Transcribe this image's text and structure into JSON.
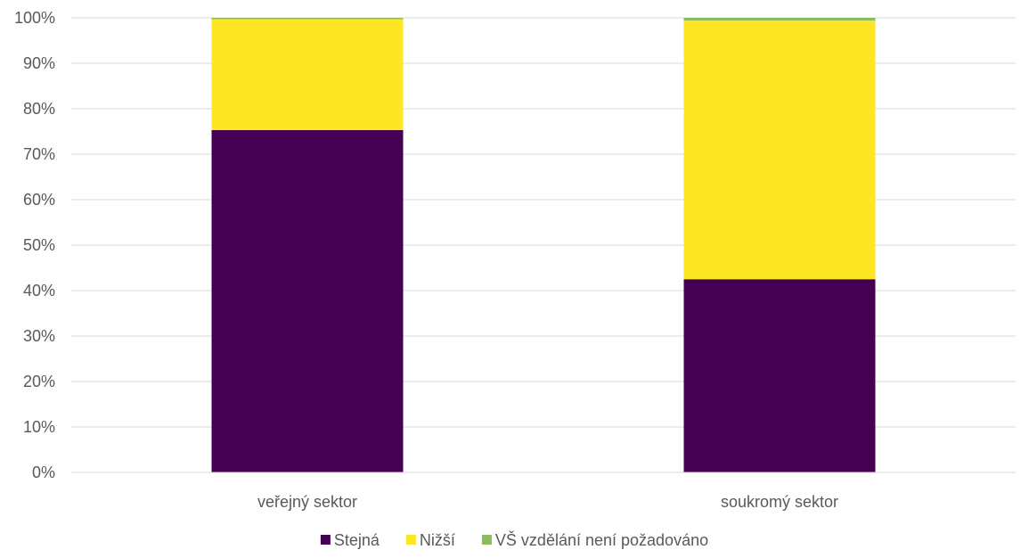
{
  "chart_data": {
    "type": "bar",
    "stacked": true,
    "percent": true,
    "categories": [
      "veřejný sektor",
      "soukromý sektor"
    ],
    "series": [
      {
        "name": "Stejná",
        "color": "#440154",
        "values": [
          75.3,
          42.5
        ]
      },
      {
        "name": "Nižší",
        "color": "#fde725",
        "values": [
          24.4,
          56.9
        ]
      },
      {
        "name": "VŠ vzdělání není požadováno",
        "color": "#8fbc5a",
        "values": [
          0.3,
          0.6
        ]
      }
    ],
    "title": "",
    "xlabel": "",
    "ylabel": "",
    "ylim": [
      0,
      100
    ],
    "yticks": [
      "0%",
      "10%",
      "20%",
      "30%",
      "40%",
      "50%",
      "60%",
      "70%",
      "80%",
      "90%",
      "100%"
    ],
    "grid": true,
    "legend": "bottom"
  }
}
